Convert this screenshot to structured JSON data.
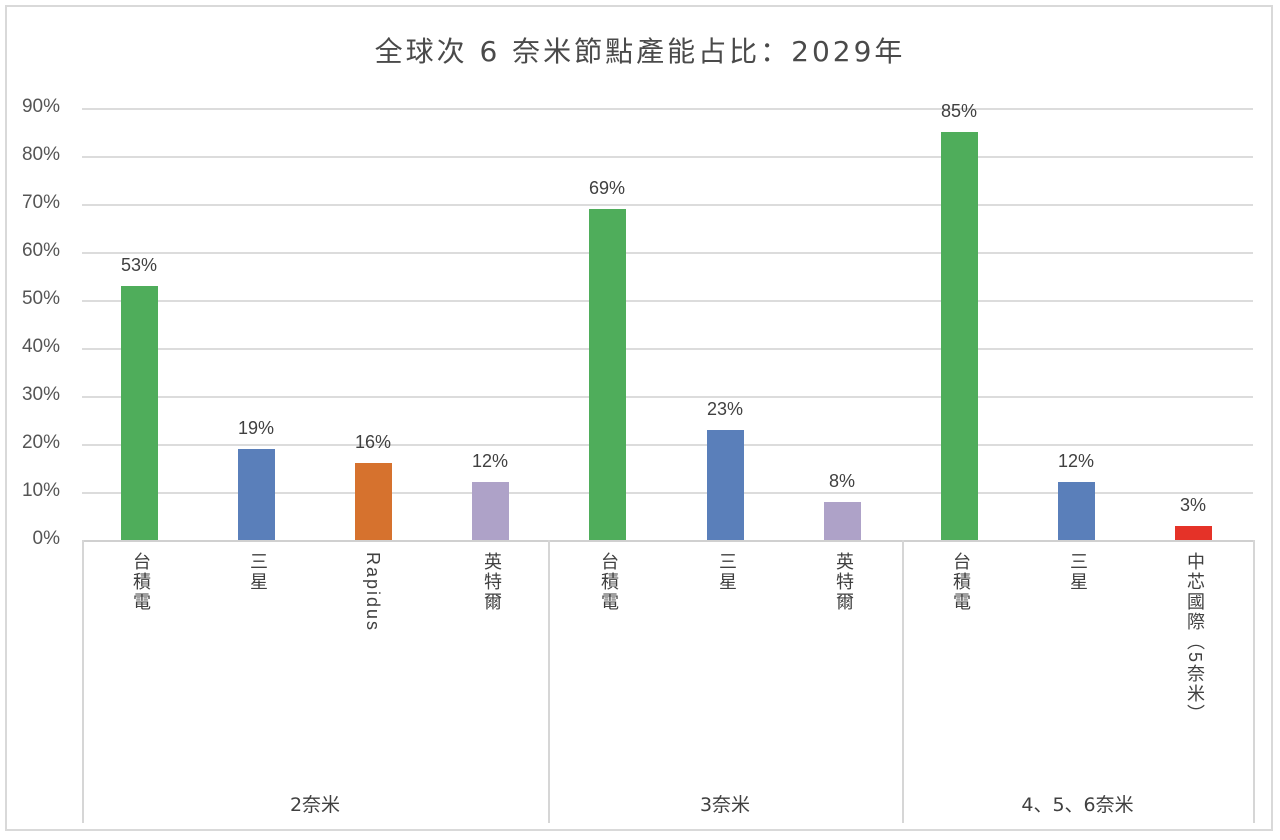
{
  "chart_data": {
    "type": "bar",
    "title": "全球次 6 奈米節點產能占比：2029年",
    "xlabel": "",
    "ylabel": "",
    "ylim": [
      0,
      0.9
    ],
    "grid": true,
    "legend": null,
    "y_ticks": [
      "0%",
      "10%",
      "20%",
      "30%",
      "40%",
      "50%",
      "60%",
      "70%",
      "80%",
      "90%"
    ],
    "groups": [
      {
        "name": "2奈米",
        "categories": [
          "台積電",
          "三星",
          "Rapidus",
          "英特爾"
        ],
        "values": [
          0.53,
          0.19,
          0.16,
          0.12
        ],
        "labels": [
          "53%",
          "19%",
          "16%",
          "12%"
        ]
      },
      {
        "name": "3奈米",
        "categories": [
          "台積電",
          "三星",
          "英特爾"
        ],
        "values": [
          0.69,
          0.23,
          0.08
        ],
        "labels": [
          "69%",
          "23%",
          "8%"
        ]
      },
      {
        "name": "4、5、6奈米",
        "categories": [
          "台積電",
          "三星",
          "中芯國際（5奈米）"
        ],
        "values": [
          0.85,
          0.12,
          0.03
        ],
        "labels": [
          "85%",
          "12%",
          "3%"
        ]
      }
    ],
    "bars": [
      {
        "group": "2奈米",
        "category": "台積電",
        "value": 0.53,
        "label": "53%",
        "color": "#4fad5b"
      },
      {
        "group": "2奈米",
        "category": "三星",
        "value": 0.19,
        "label": "19%",
        "color": "#5a7fba"
      },
      {
        "group": "2奈米",
        "category": "Rapidus",
        "value": 0.16,
        "label": "16%",
        "color": "#d6722e"
      },
      {
        "group": "2奈米",
        "category": "英特爾",
        "value": 0.12,
        "label": "12%",
        "color": "#aea2c8"
      },
      {
        "group": "3奈米",
        "category": "台積電",
        "value": 0.69,
        "label": "69%",
        "color": "#4fad5b"
      },
      {
        "group": "3奈米",
        "category": "三星",
        "value": 0.23,
        "label": "23%",
        "color": "#5a7fba"
      },
      {
        "group": "3奈米",
        "category": "英特爾",
        "value": 0.08,
        "label": "8%",
        "color": "#aea2c8"
      },
      {
        "group": "4、5、6奈米",
        "category": "台積電",
        "value": 0.85,
        "label": "85%",
        "color": "#4fad5b"
      },
      {
        "group": "4、5、6奈米",
        "category": "三星",
        "value": 0.12,
        "label": "12%",
        "color": "#5a7fba"
      },
      {
        "group": "4、5、6奈米",
        "category": "中芯國際（5奈米）",
        "value": 0.03,
        "label": "3%",
        "color": "#e53228"
      }
    ]
  },
  "colors": {
    "tsmc": "#4fad5b",
    "samsung": "#5a7fba",
    "rapidus": "#d6722e",
    "intel": "#aea2c8",
    "smic": "#e53228",
    "grid": "#dcdcdc"
  }
}
